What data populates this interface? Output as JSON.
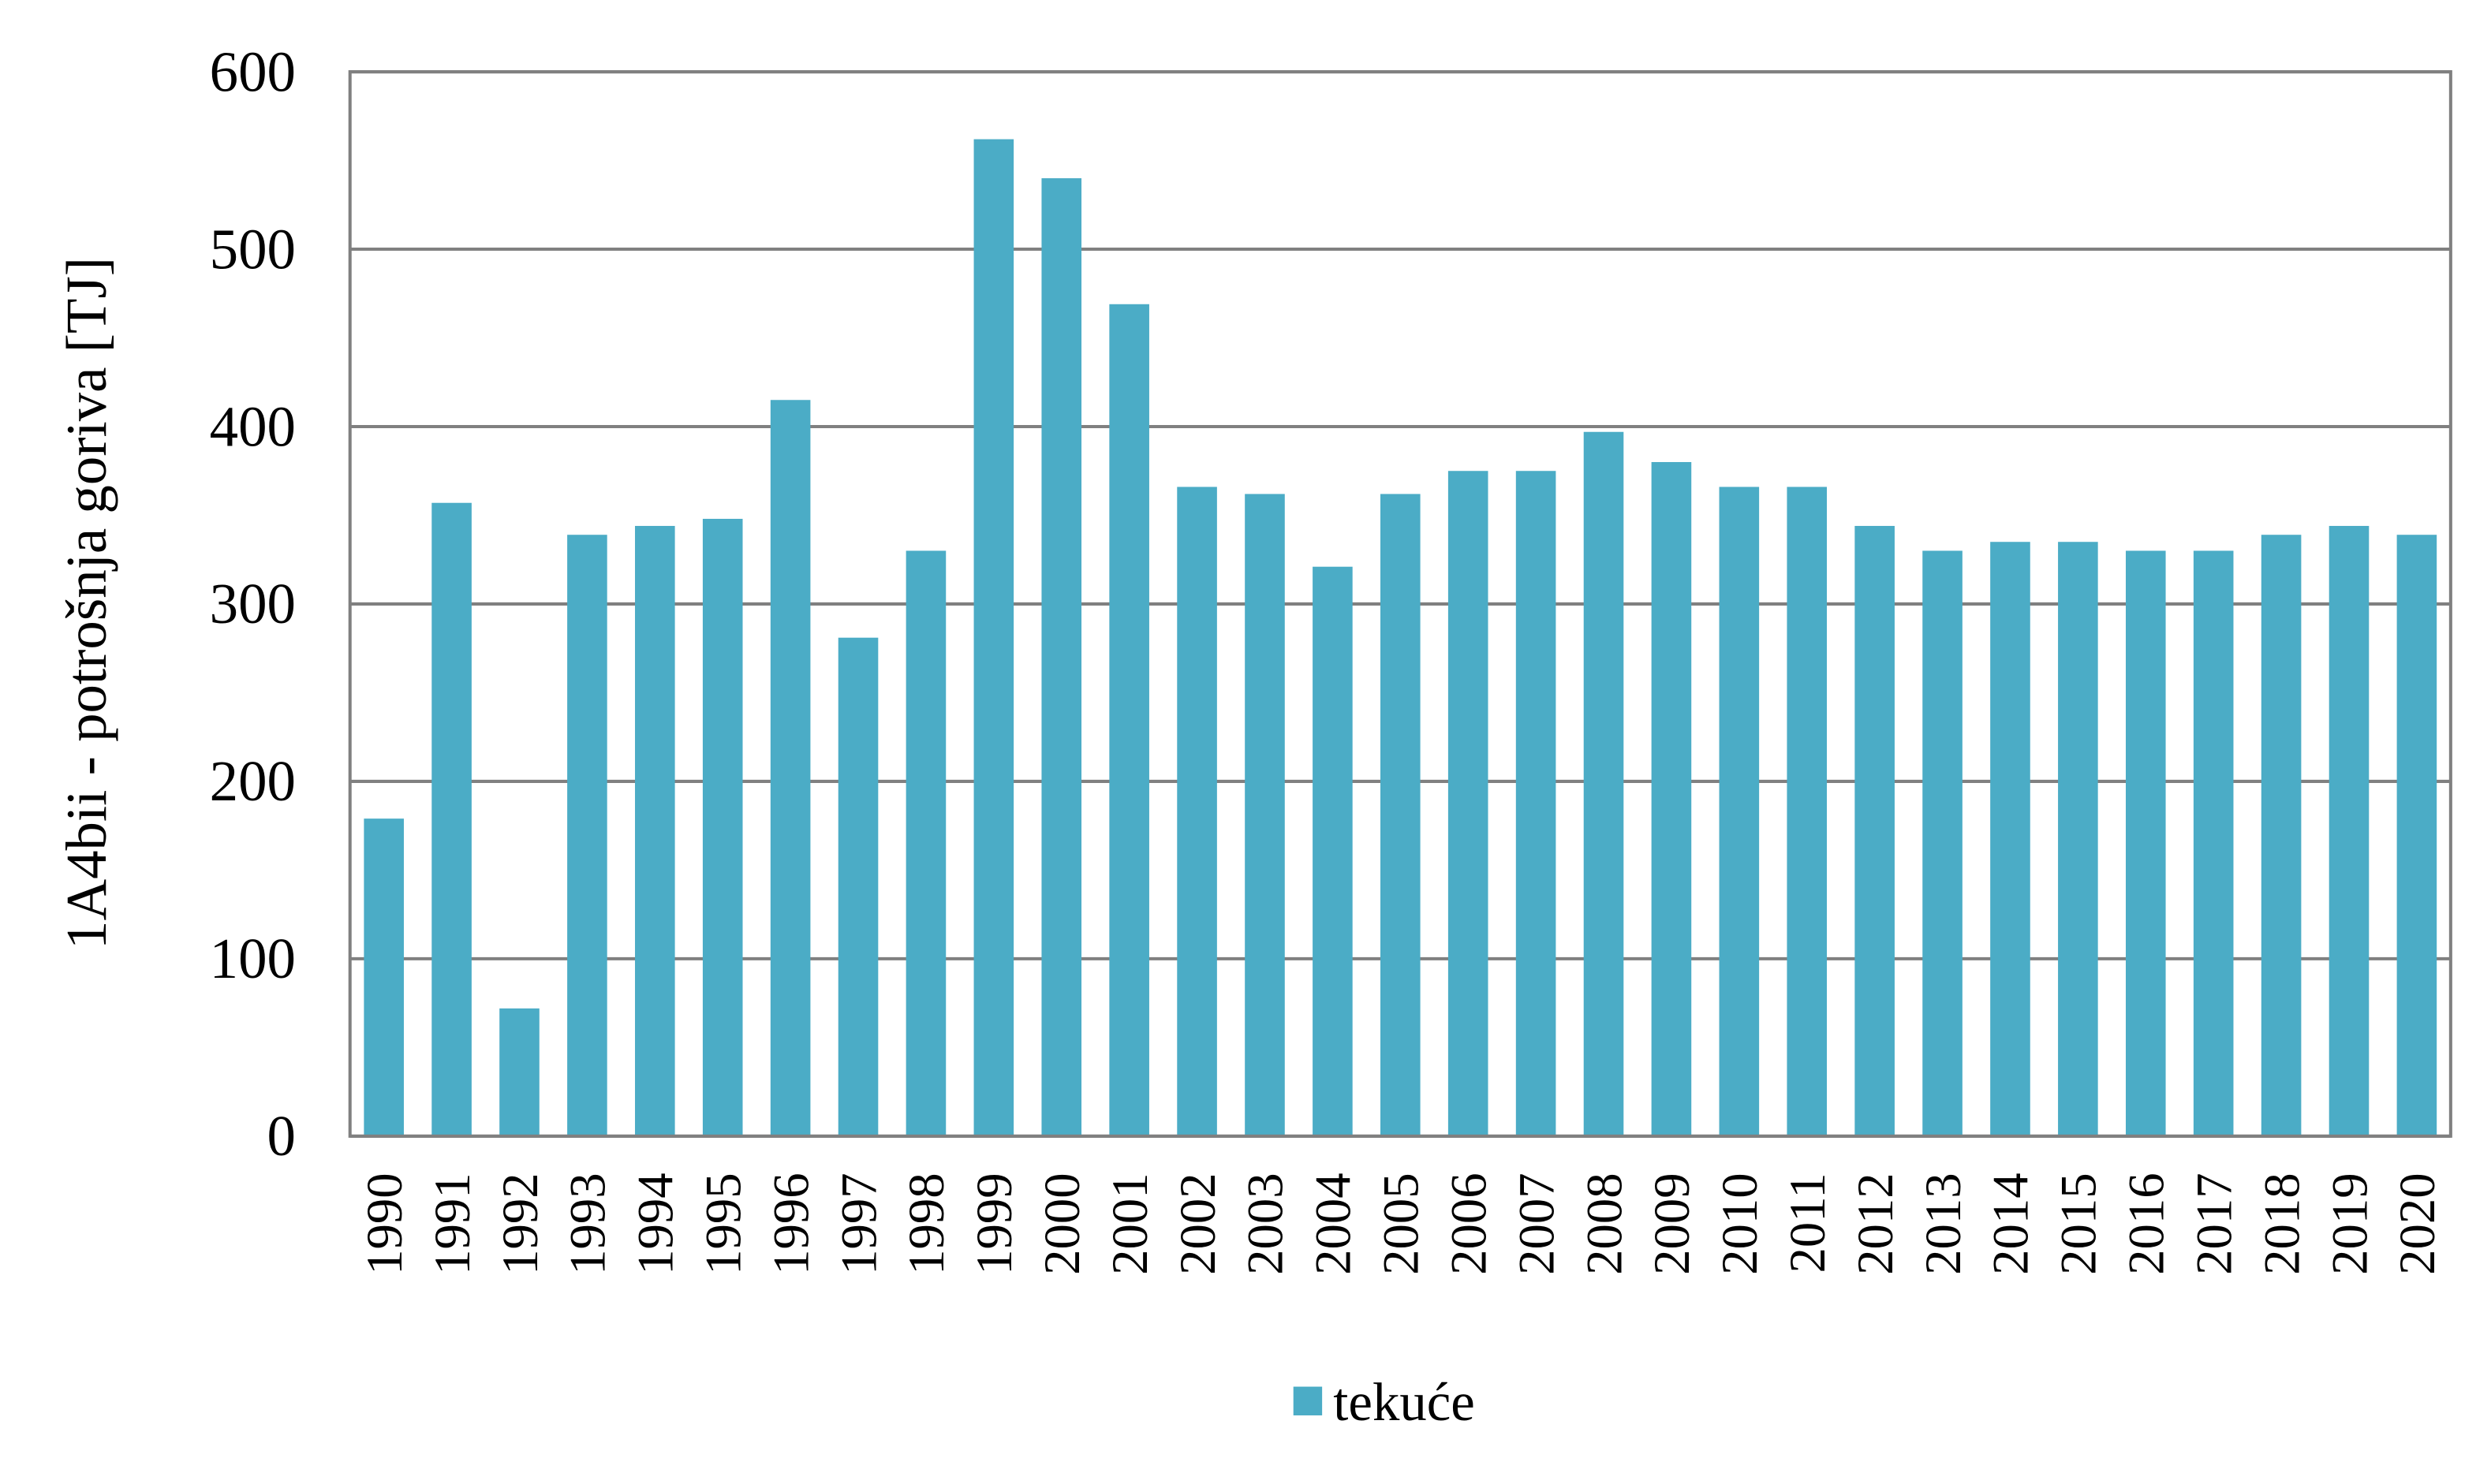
{
  "chart_data": {
    "type": "bar",
    "title": "",
    "xlabel": "",
    "ylabel": "1A4bii  - potrošnja goriva [TJ]",
    "ylim": [
      0,
      600
    ],
    "yticks": [
      0,
      100,
      200,
      300,
      400,
      500,
      600
    ],
    "grid": true,
    "legend_position": "bottom",
    "categories": [
      "1990",
      "1991",
      "1992",
      "1993",
      "1994",
      "1995",
      "1996",
      "1997",
      "1998",
      "1999",
      "2000",
      "2001",
      "2002",
      "2003",
      "2004",
      "2005",
      "2006",
      "2007",
      "2008",
      "2009",
      "2010",
      "2011",
      "2012",
      "2013",
      "2014",
      "2015",
      "2016",
      "2017",
      "2018",
      "2019",
      "2020"
    ],
    "series": [
      {
        "name": "tekuće",
        "color": "#4BACC6",
        "values": [
          179,
          357,
          72,
          339,
          344,
          348,
          415,
          281,
          330,
          562,
          540,
          469,
          366,
          362,
          321,
          362,
          375,
          375,
          397,
          380,
          366,
          366,
          344,
          330,
          335,
          335,
          330,
          330,
          339,
          344,
          339
        ]
      }
    ]
  }
}
